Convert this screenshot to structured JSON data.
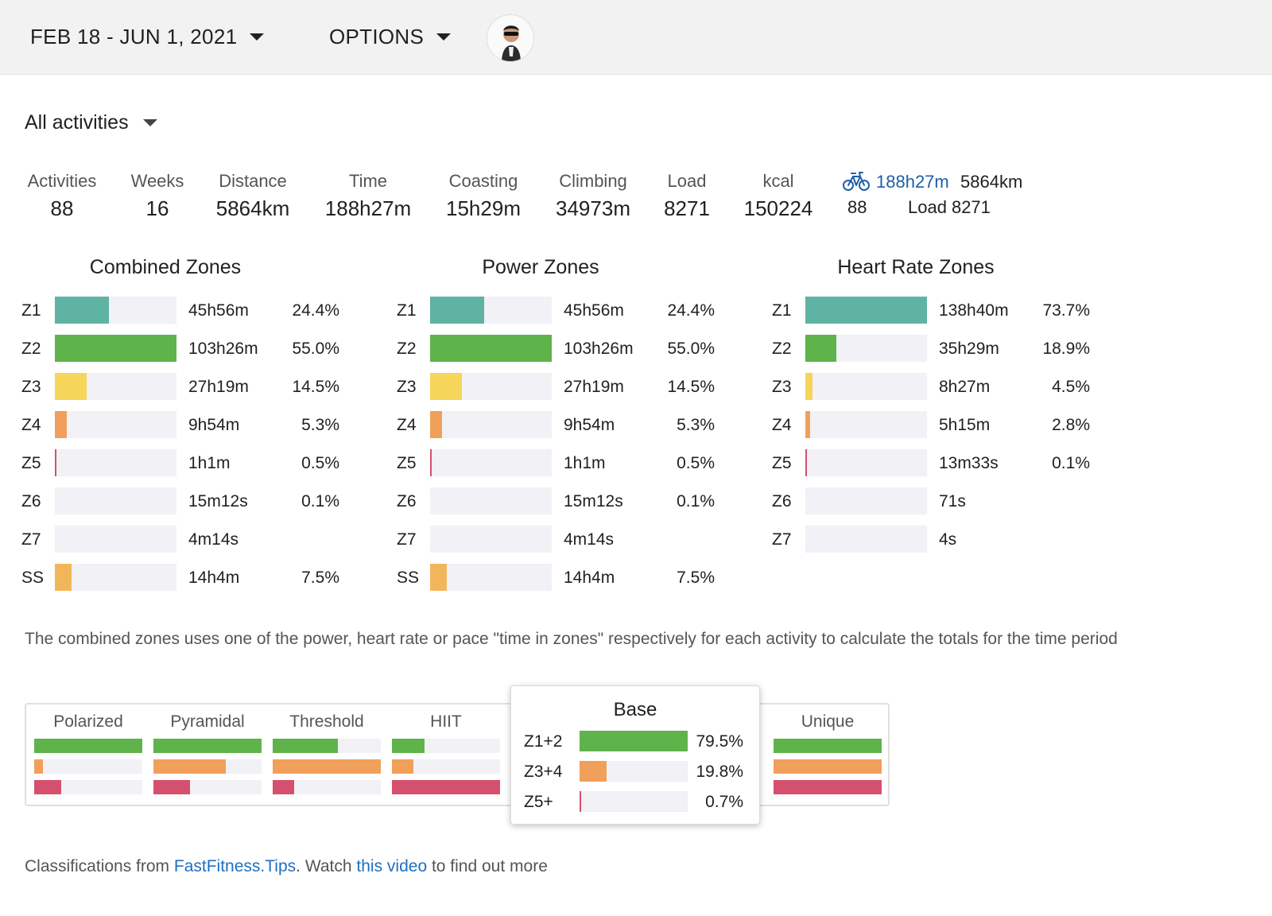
{
  "header": {
    "date_range": "FEB 18 - JUN 1, 2021",
    "options_label": "OPTIONS"
  },
  "activity_filter": "All activities",
  "stats": [
    {
      "label": "Activities",
      "value": "88"
    },
    {
      "label": "Weeks",
      "value": "16"
    },
    {
      "label": "Distance",
      "value": "5864km"
    },
    {
      "label": "Time",
      "value": "188h27m"
    },
    {
      "label": "Coasting",
      "value": "15h29m"
    },
    {
      "label": "Climbing",
      "value": "34973m"
    },
    {
      "label": "Load",
      "value": "8271"
    },
    {
      "label": "kcal",
      "value": "150224"
    }
  ],
  "ride_summary": {
    "time": "188h27m",
    "distance": "5864km",
    "count": "88",
    "load_label": "Load",
    "load_value": "8271"
  },
  "colors": {
    "z1": "#5fb3a3",
    "z2": "#5fb34b",
    "z3": "#f5d55a",
    "z4": "#f0a05a",
    "z5": "#d5506e",
    "ss": "#f2b65a",
    "link": "#1f6fbf"
  },
  "zones": {
    "combined": {
      "title": "Combined Zones",
      "rows": [
        {
          "zone": "Z1",
          "time": "45h56m",
          "pct": "24.4%",
          "fill": 0.444,
          "color": "#5fb3a3"
        },
        {
          "zone": "Z2",
          "time": "103h26m",
          "pct": "55.0%",
          "fill": 1.0,
          "color": "#5fb34b"
        },
        {
          "zone": "Z3",
          "time": "27h19m",
          "pct": "14.5%",
          "fill": 0.264,
          "color": "#f5d55a"
        },
        {
          "zone": "Z4",
          "time": "9h54m",
          "pct": "5.3%",
          "fill": 0.096,
          "color": "#f0a05a"
        },
        {
          "zone": "Z5",
          "time": "1h1m",
          "pct": "0.5%",
          "fill": 0.012,
          "color": "#d5506e"
        },
        {
          "zone": "Z6",
          "time": "15m12s",
          "pct": "0.1%",
          "fill": 0.0,
          "color": "#d5506e"
        },
        {
          "zone": "Z7",
          "time": "4m14s",
          "pct": "",
          "fill": 0.0,
          "color": "#d5506e"
        },
        {
          "zone": "SS",
          "time": "14h4m",
          "pct": "7.5%",
          "fill": 0.136,
          "color": "#f2b65a"
        }
      ]
    },
    "power": {
      "title": "Power Zones",
      "rows": [
        {
          "zone": "Z1",
          "time": "45h56m",
          "pct": "24.4%",
          "fill": 0.444,
          "color": "#5fb3a3"
        },
        {
          "zone": "Z2",
          "time": "103h26m",
          "pct": "55.0%",
          "fill": 1.0,
          "color": "#5fb34b"
        },
        {
          "zone": "Z3",
          "time": "27h19m",
          "pct": "14.5%",
          "fill": 0.264,
          "color": "#f5d55a"
        },
        {
          "zone": "Z4",
          "time": "9h54m",
          "pct": "5.3%",
          "fill": 0.096,
          "color": "#f0a05a"
        },
        {
          "zone": "Z5",
          "time": "1h1m",
          "pct": "0.5%",
          "fill": 0.012,
          "color": "#d5506e"
        },
        {
          "zone": "Z6",
          "time": "15m12s",
          "pct": "0.1%",
          "fill": 0.0,
          "color": "#d5506e"
        },
        {
          "zone": "Z7",
          "time": "4m14s",
          "pct": "",
          "fill": 0.0,
          "color": "#d5506e"
        },
        {
          "zone": "SS",
          "time": "14h4m",
          "pct": "7.5%",
          "fill": 0.136,
          "color": "#f2b65a"
        }
      ]
    },
    "heart_rate": {
      "title": "Heart Rate Zones",
      "rows": [
        {
          "zone": "Z1",
          "time": "138h40m",
          "pct": "73.7%",
          "fill": 1.0,
          "color": "#5fb3a3"
        },
        {
          "zone": "Z2",
          "time": "35h29m",
          "pct": "18.9%",
          "fill": 0.256,
          "color": "#5fb34b"
        },
        {
          "zone": "Z3",
          "time": "8h27m",
          "pct": "4.5%",
          "fill": 0.061,
          "color": "#f5d55a"
        },
        {
          "zone": "Z4",
          "time": "5h15m",
          "pct": "2.8%",
          "fill": 0.038,
          "color": "#f0a05a"
        },
        {
          "zone": "Z5",
          "time": "13m33s",
          "pct": "0.1%",
          "fill": 0.005,
          "color": "#d5506e"
        },
        {
          "zone": "Z6",
          "time": "71s",
          "pct": "",
          "fill": 0.0,
          "color": "#d5506e"
        },
        {
          "zone": "Z7",
          "time": "4s",
          "pct": "",
          "fill": 0.0,
          "color": "#d5506e"
        }
      ]
    }
  },
  "note": "The combined zones uses one of the power, heart rate or pace \"time in zones\" respectively for each activity to calculate the totals for the time period",
  "classifications": [
    {
      "name": "Polarized",
      "fills": [
        1.0,
        0.08,
        0.25
      ]
    },
    {
      "name": "Pyramidal",
      "fills": [
        1.0,
        0.67,
        0.34
      ]
    },
    {
      "name": "Threshold",
      "fills": [
        0.6,
        1.0,
        0.2
      ]
    },
    {
      "name": "HIIT",
      "fills": [
        0.3,
        0.2,
        1.0
      ]
    },
    {
      "name": "Unique",
      "fills": [
        1.0,
        1.0,
        1.0
      ]
    }
  ],
  "base_popup": {
    "title": "Base",
    "rows": [
      {
        "label": "Z1+2",
        "pct": "79.5%",
        "fill": 1.0,
        "color": "#5fb34b"
      },
      {
        "label": "Z3+4",
        "pct": "19.8%",
        "fill": 0.25,
        "color": "#f0a05a"
      },
      {
        "label": "Z5+",
        "pct": "0.7%",
        "fill": 0.012,
        "color": "#d5506e"
      }
    ]
  },
  "footer": {
    "prefix": "Classifications from ",
    "link1": "FastFitness.Tips",
    "middle": ". Watch ",
    "link2": "this video",
    "suffix": " to find out more"
  }
}
